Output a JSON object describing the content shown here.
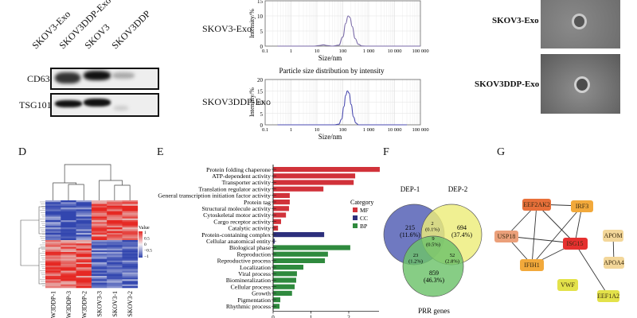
{
  "panelA": {
    "lanes": [
      "SKOV3-Exo",
      "SKOV3DDP-Exo",
      "SKOV3",
      "SKOV3DDP"
    ],
    "rows": [
      "CD63",
      "TSG101"
    ]
  },
  "panelB": {
    "title": "Particle size distribution by intensity",
    "samples": [
      "SKOV3-Exo",
      "SKOV3DDP-Exo"
    ]
  },
  "panelC": {
    "samples": [
      "SKOV3-Exo",
      "SKOV3DDP-Exo"
    ]
  },
  "panelD": {
    "letter": "D",
    "columns": [
      "W3DDP-1",
      "W3DDP-3",
      "W3DDP-2",
      "SKOV3-3",
      "SKOV3-1",
      "SKOV3-2"
    ],
    "legend_title": "Value",
    "legend_ticks": [
      "1",
      "0.5",
      "0",
      "−0.5",
      "−1"
    ]
  },
  "panelE": {
    "letter": "E"
  },
  "panelF": {
    "letter": "F"
  },
  "panelG": {
    "letter": "G"
  },
  "chart_data": [
    {
      "type": "line",
      "title": "",
      "sample": "SKOV3-Exo",
      "xlabel": "Size/nm",
      "ylabel": "Intensity/%",
      "xscale": "log",
      "xlim": [
        0.1,
        100000
      ],
      "ylim": [
        0,
        15
      ],
      "xticks": [
        "0.1",
        "1",
        "10",
        "100",
        "1 000",
        "10 000",
        "100 000"
      ],
      "yticks": [
        "0",
        "5",
        "10",
        "15"
      ],
      "grid": true,
      "x": [
        0.3,
        8,
        12,
        18,
        25,
        40,
        70,
        100,
        130,
        160,
        190,
        230,
        300,
        400,
        550,
        800,
        100000
      ],
      "y": [
        0,
        0,
        0.2,
        0.4,
        0.2,
        0,
        0.3,
        3,
        7.5,
        10,
        9.5,
        6.5,
        2.5,
        0.6,
        0.05,
        0,
        0
      ],
      "color": "#7a6aa8"
    },
    {
      "type": "line",
      "title": "Particle size distribution by intensity",
      "sample": "SKOV3DDP-Exo",
      "xlabel": "Size/nm",
      "ylabel": "Intensity/%",
      "xscale": "log",
      "xlim": [
        0.1,
        100000
      ],
      "ylim": [
        0,
        20
      ],
      "xticks": [
        "0.1",
        "1",
        "10",
        "100",
        "1 000",
        "10 000",
        "100 000"
      ],
      "yticks": [
        "0",
        "5",
        "10",
        "15",
        "20"
      ],
      "grid": true,
      "x": [
        0.3,
        50,
        70,
        90,
        110,
        130,
        150,
        175,
        210,
        260,
        320,
        400,
        30000
      ],
      "y": [
        0,
        0,
        0.3,
        2.5,
        8,
        13,
        15,
        14,
        9,
        3.5,
        0.8,
        0,
        0
      ],
      "color": "#4a4ab0"
    },
    {
      "type": "bar",
      "orientation": "horizontal",
      "title": "",
      "xlabel": "",
      "xlim": [
        0,
        3
      ],
      "xticks": [
        "0",
        "1",
        "2"
      ],
      "legend_title": "Category",
      "legend": [
        {
          "name": "MF",
          "color": "#d1323a"
        },
        {
          "name": "CC",
          "color": "#2d2f7c"
        },
        {
          "name": "BP",
          "color": "#2f8a3e"
        }
      ],
      "legend_position": "right",
      "categories": [
        "Protein folding chaperone",
        "ATP-dependent activity",
        "Transporter activity",
        "Translation regulator activity",
        "General transcription initiation factor activity",
        "Protein tag",
        "Structural molecule activity",
        "Cytoskeletal motor activity",
        "Cargo receptor activity",
        "Catalytic activity",
        "Protein-containing complex",
        "Cellular anatomical entity",
        "Biological phase",
        "Reproduction",
        "Reproductive process",
        "Localization",
        "Viral process",
        "Biomineralization",
        "Cellular process",
        "Growth",
        "Pigmentation",
        "Rhythmic process"
      ],
      "values": [
        2.82,
        2.17,
        2.13,
        1.33,
        0.44,
        0.44,
        0.42,
        0.34,
        0.21,
        0.13,
        1.35,
        0.04,
        2.04,
        1.45,
        1.37,
        0.8,
        0.63,
        0.61,
        0.57,
        0.5,
        0.19,
        0.17
      ],
      "groups": [
        "MF",
        "MF",
        "MF",
        "MF",
        "MF",
        "MF",
        "MF",
        "MF",
        "MF",
        "MF",
        "CC",
        "CC",
        "BP",
        "BP",
        "BP",
        "BP",
        "BP",
        "BP",
        "BP",
        "BP",
        "BP",
        "BP"
      ]
    },
    {
      "type": "venn",
      "sets": [
        {
          "name": "DEP-1",
          "color": "#4f5bb3"
        },
        {
          "name": "DEP-2",
          "color": "#eded7a"
        },
        {
          "name": "PRR genes",
          "color": "#6cc26a"
        }
      ],
      "regions": [
        {
          "sets": [
            "DEP-1"
          ],
          "count": "215",
          "pct": "(11.6%)"
        },
        {
          "sets": [
            "DEP-2"
          ],
          "count": "694",
          "pct": "(37.4%)"
        },
        {
          "sets": [
            "PRR genes"
          ],
          "count": "859",
          "pct": "(46.3%)"
        },
        {
          "sets": [
            "DEP-1",
            "DEP-2"
          ],
          "count": "2",
          "pct": "(0.1%)"
        },
        {
          "sets": [
            "DEP-1",
            "PRR genes"
          ],
          "count": "23",
          "pct": "(1.2%)"
        },
        {
          "sets": [
            "DEP-2",
            "PRR genes"
          ],
          "count": "52",
          "pct": "(2.8%)"
        },
        {
          "sets": [
            "DEP-1",
            "DEP-2",
            "PRR genes"
          ],
          "count": "9",
          "pct": "(0.5%)"
        }
      ]
    },
    {
      "type": "network",
      "nodes": [
        {
          "id": "EEF2AK2",
          "color": "#e8703a"
        },
        {
          "id": "IRF3",
          "color": "#f2a93b"
        },
        {
          "id": "USP18",
          "color": "#eba07a"
        },
        {
          "id": "ISG15",
          "color": "#e5302f"
        },
        {
          "id": "IFIH1",
          "color": "#f2a93b"
        },
        {
          "id": "APOM",
          "color": "#f3d79a"
        },
        {
          "id": "APOA4",
          "color": "#f3d79a"
        },
        {
          "id": "VWF",
          "color": "#e3e24a"
        },
        {
          "id": "EEF1A2",
          "color": "#e3e24a"
        }
      ],
      "edges": [
        [
          "EEF2AK2",
          "IRF3"
        ],
        [
          "EEF2AK2",
          "USP18"
        ],
        [
          "EEF2AK2",
          "IFIH1"
        ],
        [
          "EEF2AK2",
          "ISG15"
        ],
        [
          "IRF3",
          "IFIH1"
        ],
        [
          "IRF3",
          "ISG15"
        ],
        [
          "USP18",
          "ISG15"
        ],
        [
          "USP18",
          "IFIH1"
        ],
        [
          "ISG15",
          "IFIH1"
        ],
        [
          "ISG15",
          "EEF1A2"
        ],
        [
          "APOM",
          "APOA4"
        ]
      ]
    }
  ]
}
